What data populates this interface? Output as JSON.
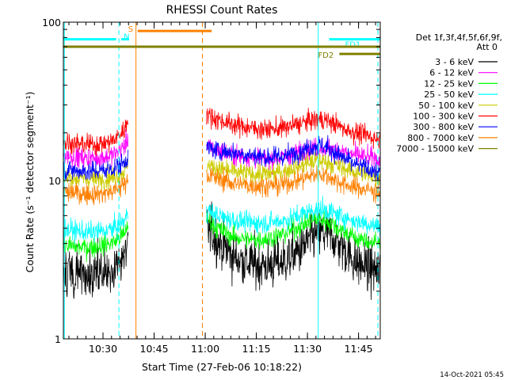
{
  "chart_data": {
    "type": "line",
    "title": "RHESSI Count Rates",
    "xlabel": "Start Time (27-Feb-06 10:18:22)",
    "ylabel": "Count Rate (s⁻¹ detector segment⁻¹)",
    "footer": "14-Oct-2021 05:45",
    "x_unit": "minutes after 10:18:22",
    "xlim": [
      0,
      93
    ],
    "ylim": [
      1,
      100
    ],
    "y_scale": "log",
    "x_ticks": [
      {
        "label": "10:30",
        "value": 11.63
      },
      {
        "label": "10:45",
        "value": 26.63
      },
      {
        "label": "11:00",
        "value": 41.63
      },
      {
        "label": "11:15",
        "value": 56.63
      },
      {
        "label": "11:30",
        "value": 71.63
      },
      {
        "label": "11:45",
        "value": 86.63
      }
    ],
    "y_ticks": [
      {
        "label": "1",
        "value": 1
      },
      {
        "label": "10",
        "value": 10
      },
      {
        "label": "100",
        "value": 100
      }
    ],
    "legend_header": [
      "Det 1f,3f,4f,5f,6f,9f,",
      "Att 0"
    ],
    "legend_position": "right",
    "series": [
      {
        "name": "3 - 6 keV",
        "color": "#000000",
        "segments": [
          {
            "x": [
              0,
              4,
              8,
              12,
              15,
              18,
              19
            ],
            "y": [
              2.8,
              2.6,
              2.5,
              2.6,
              2.8,
              3.3,
              4.0
            ]
          },
          {
            "x": [
              42,
              45,
              50,
              55,
              60,
              65,
              70,
              73,
              75,
              78,
              80,
              83,
              86,
              90,
              93
            ],
            "y": [
              5.2,
              4.2,
              3.3,
              3.0,
              2.9,
              3.1,
              3.7,
              4.4,
              4.7,
              4.6,
              4.2,
              3.6,
              3.0,
              2.8,
              2.6
            ]
          }
        ]
      },
      {
        "name": "6 - 12 keV",
        "color": "#ff00ff",
        "segments": [
          {
            "x": [
              0,
              4,
              8,
              12,
              15,
              18,
              19
            ],
            "y": [
              14.5,
              14.0,
              13.8,
              14.0,
              14.6,
              16.5,
              19.0
            ]
          },
          {
            "x": [
              42,
              45,
              50,
              55,
              60,
              65,
              70,
              73,
              75,
              78,
              80,
              83,
              86,
              90,
              93
            ],
            "y": [
              16.5,
              15.5,
              14.5,
              14.0,
              13.6,
              14.0,
              15.2,
              16.0,
              16.3,
              16.0,
              15.6,
              15.0,
              14.4,
              14.0,
              13.5
            ]
          }
        ]
      },
      {
        "name": "12 - 25 keV",
        "color": "#00ff00",
        "segments": [
          {
            "x": [
              0,
              4,
              8,
              12,
              15,
              18,
              19
            ],
            "y": [
              3.9,
              3.8,
              3.8,
              3.9,
              4.1,
              4.6,
              5.4
            ]
          },
          {
            "x": [
              42,
              45,
              50,
              55,
              60,
              65,
              70,
              73,
              75,
              78,
              80,
              83,
              86,
              90,
              93
            ],
            "y": [
              5.8,
              5.0,
              4.4,
              4.2,
              4.3,
              4.6,
              5.2,
              5.6,
              5.7,
              5.5,
              5.1,
              4.7,
              4.3,
              4.1,
              4.0
            ]
          }
        ]
      },
      {
        "name": "25 - 50 keV",
        "color": "#00ffff",
        "segments": [
          {
            "x": [
              0,
              4,
              8,
              12,
              15,
              18,
              19
            ],
            "y": [
              4.9,
              4.8,
              4.7,
              4.8,
              5.0,
              5.6,
              6.3
            ]
          },
          {
            "x": [
              42,
              45,
              50,
              55,
              60,
              65,
              70,
              73,
              75,
              78,
              80,
              83,
              86,
              90,
              93
            ],
            "y": [
              6.5,
              6.0,
              5.6,
              5.4,
              5.4,
              5.6,
              6.1,
              6.5,
              6.6,
              6.4,
              6.1,
              5.8,
              5.5,
              5.3,
              5.1
            ]
          }
        ]
      },
      {
        "name": "50 - 100 keV",
        "color": "#cccc00",
        "segments": [
          {
            "x": [
              0,
              4,
              8,
              12,
              15,
              18,
              19
            ],
            "y": [
              10.5,
              10.3,
              10.2,
              10.3,
              10.6,
              11.5,
              12.5
            ]
          },
          {
            "x": [
              42,
              45,
              50,
              55,
              60,
              65,
              70,
              73,
              75,
              78,
              80,
              83,
              86,
              90,
              93
            ],
            "y": [
              12.5,
              12.0,
              11.3,
              11.0,
              11.0,
              11.5,
              12.5,
              13.2,
              13.4,
              13.0,
              12.4,
              11.8,
              11.3,
              10.9,
              10.5
            ]
          }
        ]
      },
      {
        "name": "100 - 300 keV",
        "color": "#ff0000",
        "segments": [
          {
            "x": [
              0,
              4,
              8,
              12,
              15,
              18,
              19
            ],
            "y": [
              17.5,
              17.0,
              16.8,
              17.2,
              18.0,
              21.0,
              25.0
            ]
          },
          {
            "x": [
              42,
              45,
              50,
              55,
              60,
              65,
              70,
              73,
              75,
              78,
              80,
              83,
              86,
              90,
              93
            ],
            "y": [
              26.0,
              24.5,
              22.5,
              21.5,
              21.0,
              21.5,
              23.0,
              24.0,
              24.3,
              23.8,
              22.5,
              21.0,
              20.0,
              19.0,
              18.0
            ]
          }
        ]
      },
      {
        "name": "300 - 800 keV",
        "color": "#0000ff",
        "segments": [
          {
            "x": [
              0,
              4,
              8,
              12,
              15,
              18,
              19
            ],
            "y": [
              11.7,
              11.5,
              11.4,
              11.6,
              12.0,
              13.0,
              14.5
            ]
          },
          {
            "x": [
              42,
              45,
              50,
              55,
              60,
              65,
              70,
              73,
              75,
              78,
              80,
              83,
              86,
              90,
              93
            ],
            "y": [
              16.0,
              15.5,
              15.0,
              14.5,
              14.0,
              14.2,
              15.5,
              16.5,
              16.6,
              16.0,
              14.8,
              13.5,
              12.5,
              11.8,
              11.0
            ]
          }
        ]
      },
      {
        "name": "800 - 7000 keV",
        "color": "#ff8000",
        "segments": [
          {
            "x": [
              0,
              4,
              8,
              12,
              15,
              18,
              19
            ],
            "y": [
              8.5,
              8.3,
              8.2,
              8.3,
              8.6,
              9.5,
              10.5
            ]
          },
          {
            "x": [
              42,
              45,
              50,
              55,
              60,
              65,
              70,
              73,
              75,
              78,
              80,
              83,
              86,
              90,
              93
            ],
            "y": [
              10.8,
              10.3,
              9.6,
              9.3,
              9.2,
              9.5,
              10.3,
              10.8,
              11.0,
              10.6,
              10.0,
              9.4,
              9.0,
              8.7,
              8.4
            ]
          }
        ]
      },
      {
        "name": "7000 - 15000 keV",
        "color": "#808000",
        "segments": []
      }
    ],
    "flag_bars": [
      {
        "label": "",
        "color": "#00ffff",
        "x0": 0,
        "x1": 15.5,
        "y": 78
      },
      {
        "label": "N",
        "color": "#00ffff",
        "x0": 17,
        "x1": 19.3,
        "y": 78
      },
      {
        "label": "S",
        "color": "#ff8000",
        "x0": 21.8,
        "x1": 43.5,
        "y": 88
      },
      {
        "label": "FD1",
        "color": "#00ffff",
        "x0": 78,
        "x1": 93,
        "y": 78
      },
      {
        "label": "",
        "color": "#808000",
        "x0": 0,
        "x1": 93,
        "y": 70
      },
      {
        "label": "FD2",
        "color": "#808000",
        "x0": 81,
        "x1": 93,
        "y": 63
      }
    ],
    "vertical_lines": [
      {
        "x": 0.3,
        "color": "#00ffff",
        "style": "solid"
      },
      {
        "x": 16.3,
        "color": "#00ffff",
        "style": "dashed"
      },
      {
        "x": 21.3,
        "color": "#ff8000",
        "style": "solid"
      },
      {
        "x": 40.8,
        "color": "#ff8000",
        "style": "dashed"
      },
      {
        "x": 74.8,
        "color": "#00ffff",
        "style": "solid"
      },
      {
        "x": 92.3,
        "color": "#00ffff",
        "style": "dashed"
      }
    ]
  }
}
